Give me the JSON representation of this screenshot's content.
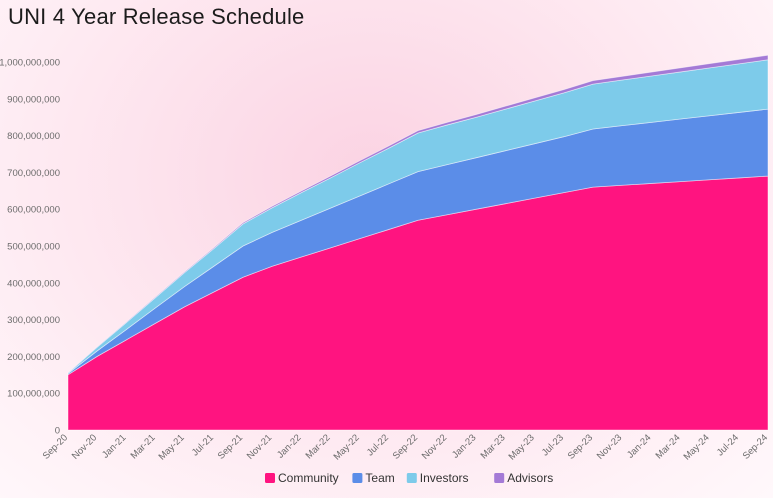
{
  "chart_data": {
    "type": "area",
    "stacked": true,
    "title": "UNI 4 Year Release Schedule",
    "xlabel": "",
    "ylabel": "",
    "ylim": [
      0,
      1000000000
    ],
    "yticks": [
      0,
      100000000,
      200000000,
      300000000,
      400000000,
      500000000,
      600000000,
      700000000,
      800000000,
      900000000,
      1000000000
    ],
    "ytick_labels": [
      "0",
      "100,000,000",
      "200,000,000",
      "300,000,000",
      "400,000,000",
      "500,000,000",
      "600,000,000",
      "700,000,000",
      "800,000,000",
      "900,000,000",
      "1,000,000,000"
    ],
    "categories": [
      "Sep-20",
      "Nov-20",
      "Jan-21",
      "Mar-21",
      "May-21",
      "Jul-21",
      "Sep-21",
      "Nov-21",
      "Jan-22",
      "Mar-22",
      "May-22",
      "Jul-22",
      "Sep-22",
      "Nov-22",
      "Jan-23",
      "Mar-23",
      "May-23",
      "Jul-23",
      "Sep-23",
      "Nov-23",
      "Jan-24",
      "Mar-24",
      "May-24",
      "Jul-24",
      "Sep-24"
    ],
    "series": [
      {
        "name": "Community",
        "color": "#ff1480",
        "values": [
          150000000,
          200000000,
          245000000,
          290000000,
          335000000,
          375000000,
          415000000,
          445000000,
          470000000,
          495000000,
          520000000,
          545000000,
          570000000,
          585000000,
          600000000,
          615000000,
          630000000,
          645000000,
          660000000,
          665000000,
          670000000,
          675000000,
          680000000,
          685000000,
          690000000
        ]
      },
      {
        "name": "Team",
        "color": "#5b8de8",
        "values": [
          3000000,
          15000000,
          28000000,
          42000000,
          55000000,
          70000000,
          85000000,
          92000000,
          100000000,
          108000000,
          116000000,
          124000000,
          132000000,
          136000000,
          140000000,
          144000000,
          148000000,
          152000000,
          158000000,
          162000000,
          166000000,
          170000000,
          174000000,
          178000000,
          182000000
        ]
      },
      {
        "name": "Investors",
        "color": "#7dcbea",
        "values": [
          2000000,
          10000000,
          19000000,
          28000000,
          38000000,
          48000000,
          60000000,
          67000000,
          75000000,
          82000000,
          90000000,
          97000000,
          105000000,
          108000000,
          110000000,
          113000000,
          116000000,
          119000000,
          122000000,
          124000000,
          126000000,
          128000000,
          130000000,
          132000000,
          134000000
        ]
      },
      {
        "name": "Advisors",
        "color": "#a47ad6",
        "values": [
          500000,
          1000000,
          1500000,
          2000000,
          2500000,
          3000000,
          3500000,
          4000000,
          4500000,
          5000000,
          5500000,
          6000000,
          6500000,
          7000000,
          7500000,
          8000000,
          8500000,
          9000000,
          9500000,
          10000000,
          10500000,
          11000000,
          11500000,
          12000000,
          12500000
        ]
      }
    ],
    "grid": false,
    "legend": "bottom"
  }
}
